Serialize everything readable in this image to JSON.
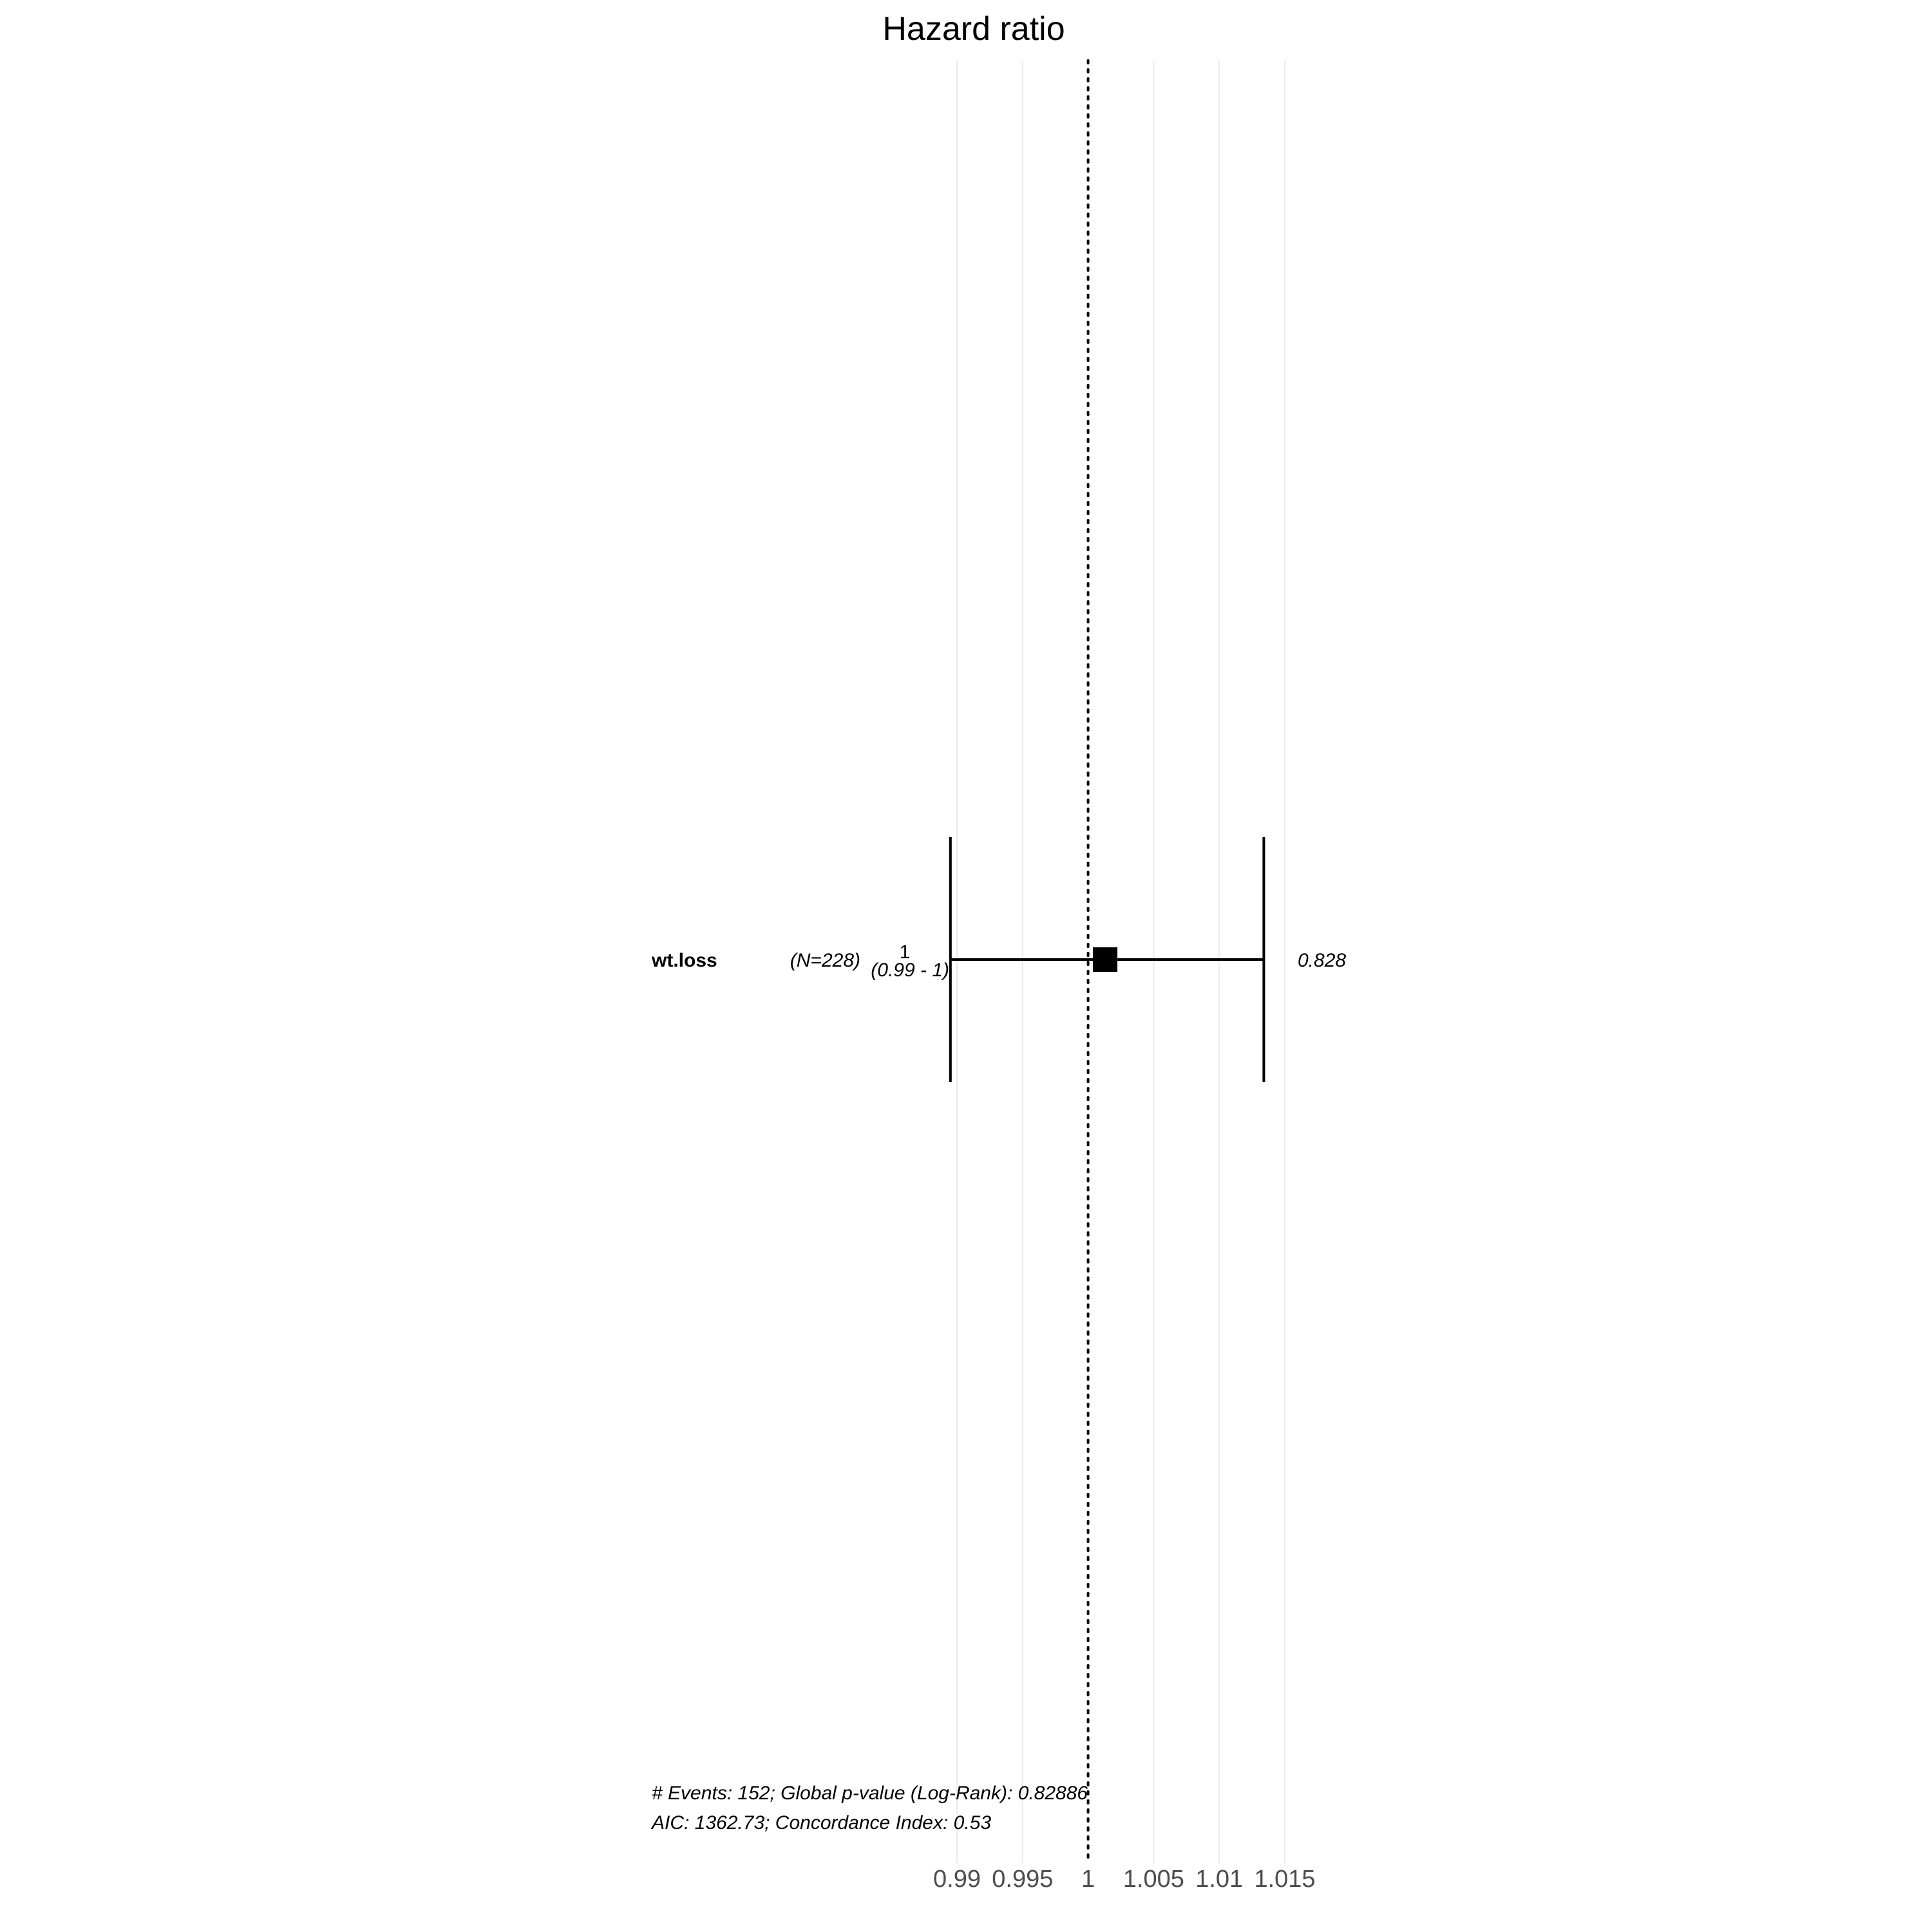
{
  "chart_data": {
    "type": "forest",
    "title": "Hazard ratio",
    "x_ticks": [
      0.99,
      0.995,
      1,
      1.005,
      1.01,
      1.015
    ],
    "x_tick_labels": [
      "0.99",
      "0.995",
      "1",
      "1.005",
      "1.01",
      "1.015"
    ],
    "xlim": [
      0.99,
      1.015
    ],
    "reference_value": 1,
    "grid": "vertical",
    "rows": [
      {
        "variable": "wt.loss",
        "n_label": "(N=228)",
        "estimate": 1.0013,
        "ci_lower": 0.9895,
        "ci_upper": 1.0134,
        "estimate_label": "1",
        "ci_label": "(0.99 - 1)",
        "p_value_label": "0.828"
      }
    ],
    "footer": [
      "# Events: 152; Global p-value (Log-Rank): 0.82886",
      "AIC: 1362.73; Concordance Index: 0.53"
    ]
  }
}
